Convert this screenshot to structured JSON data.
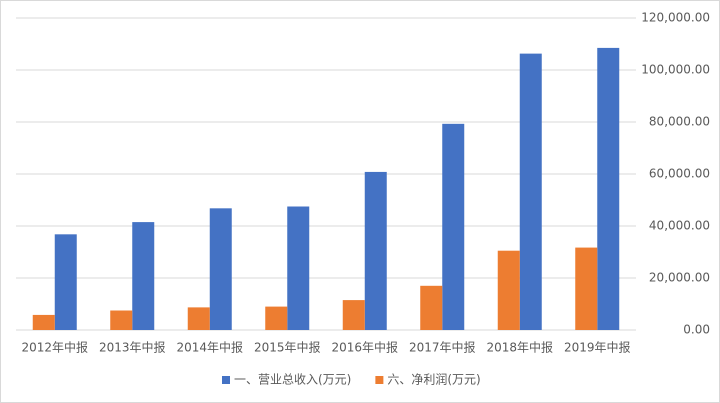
{
  "chart_data": {
    "type": "bar",
    "categories": [
      "2012年中报",
      "2013年中报",
      "2014年中报",
      "2015年中报",
      "2016年中报",
      "2017年中报",
      "2018年中报",
      "2019年中报"
    ],
    "series": [
      {
        "name": "一、营业总收入(万元)",
        "color": "#4472c4",
        "values": [
          36800,
          41500,
          46800,
          47500,
          60800,
          79300,
          106300,
          108500
        ]
      },
      {
        "name": "六、净利润(万元)",
        "color": "#ed7d31",
        "values": [
          5800,
          7500,
          8700,
          9000,
          11500,
          17000,
          30500,
          31700
        ]
      }
    ],
    "ylim": [
      0,
      120000
    ],
    "yticks": [
      {
        "value": 0,
        "label": "0.00"
      },
      {
        "value": 20000,
        "label": "20,000.00"
      },
      {
        "value": 40000,
        "label": "40,000.00"
      },
      {
        "value": 60000,
        "label": "60,000.00"
      },
      {
        "value": 80000,
        "label": "80,000.00"
      },
      {
        "value": 100000,
        "label": "100,000.00"
      },
      {
        "value": 120000,
        "label": "120,000.00"
      }
    ],
    "grid": true,
    "legend": "bottom"
  }
}
